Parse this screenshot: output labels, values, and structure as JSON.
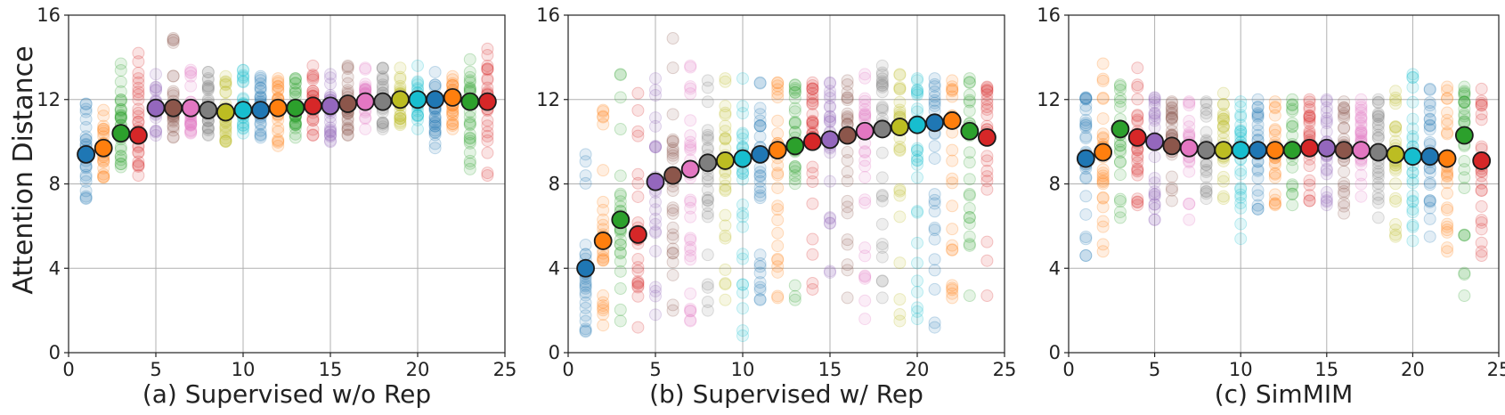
{
  "figure": {
    "ylabel": "Attention Distance"
  },
  "chart_data": [
    {
      "type": "scatter",
      "title": "",
      "xlabel": "(a) Supervised w/o Rep",
      "ylabel": "Attention Distance",
      "xlim": [
        0,
        25
      ],
      "ylim": [
        0,
        16
      ],
      "xticks": [
        0,
        5,
        10,
        15,
        20,
        25
      ],
      "yticks": [
        0,
        4,
        8,
        12,
        16
      ],
      "grid": true,
      "layers": [
        1,
        2,
        3,
        4,
        5,
        6,
        7,
        8,
        9,
        10,
        11,
        12,
        13,
        14,
        15,
        16,
        17,
        18,
        19,
        20,
        21,
        22,
        23,
        24
      ],
      "mean_distance": [
        9.4,
        9.7,
        10.4,
        10.3,
        11.6,
        11.6,
        11.6,
        11.5,
        11.4,
        11.5,
        11.5,
        11.6,
        11.6,
        11.7,
        11.7,
        11.8,
        11.9,
        11.9,
        12.0,
        12.0,
        12.0,
        12.1,
        11.9,
        11.9
      ],
      "head_range_min": [
        7.3,
        8.3,
        8.8,
        8.4,
        10.3,
        10.2,
        10.4,
        10.3,
        10.0,
        10.4,
        10.2,
        9.8,
        10.2,
        10.3,
        10.0,
        10.3,
        10.6,
        10.6,
        10.8,
        10.6,
        9.7,
        10.6,
        8.7,
        8.4
      ],
      "head_range_max": [
        11.8,
        11.5,
        13.7,
        14.2,
        13.2,
        14.9,
        13.4,
        13.3,
        13.1,
        13.4,
        13.1,
        13.0,
        13.0,
        13.6,
        13.2,
        13.6,
        13.5,
        13.5,
        13.5,
        13.6,
        13.3,
        13.1,
        13.9,
        14.4
      ]
    },
    {
      "type": "scatter",
      "title": "",
      "xlabel": "(b) Supervised w/ Rep",
      "ylabel": "",
      "xlim": [
        0,
        25
      ],
      "ylim": [
        0,
        16
      ],
      "xticks": [
        0,
        5,
        10,
        15,
        20,
        25
      ],
      "yticks": [
        0,
        4,
        8,
        12,
        16
      ],
      "grid": true,
      "layers": [
        1,
        2,
        3,
        4,
        5,
        6,
        7,
        8,
        9,
        10,
        11,
        12,
        13,
        14,
        15,
        16,
        17,
        18,
        19,
        20,
        21,
        22,
        23,
        24
      ],
      "mean_distance": [
        4.0,
        5.3,
        6.3,
        5.6,
        8.1,
        8.4,
        8.7,
        9.0,
        9.1,
        9.2,
        9.4,
        9.6,
        9.8,
        10.0,
        10.1,
        10.3,
        10.5,
        10.6,
        10.7,
        10.8,
        10.9,
        11.0,
        10.5,
        10.2
      ],
      "head_range_min": [
        1.0,
        1.3,
        1.5,
        1.2,
        1.8,
        2.0,
        1.5,
        2.0,
        2.5,
        0.8,
        2.5,
        2.6,
        2.5,
        3.0,
        3.8,
        2.6,
        1.6,
        2.6,
        1.5,
        1.6,
        1.2,
        2.6,
        2.7,
        2.7
      ],
      "head_range_max": [
        9.4,
        11.5,
        13.2,
        12.3,
        13.0,
        14.9,
        13.6,
        12.9,
        13.0,
        13.0,
        12.8,
        12.8,
        12.7,
        12.8,
        12.8,
        12.9,
        13.2,
        13.6,
        13.2,
        13.0,
        13.0,
        12.9,
        13.0,
        12.6
      ]
    },
    {
      "type": "scatter",
      "title": "",
      "xlabel": "(c) SimMIM",
      "ylabel": "",
      "xlim": [
        0,
        25
      ],
      "ylim": [
        0,
        16
      ],
      "xticks": [
        0,
        5,
        10,
        15,
        20,
        25
      ],
      "yticks": [
        0,
        4,
        8,
        12,
        16
      ],
      "grid": true,
      "layers": [
        1,
        2,
        3,
        4,
        5,
        6,
        7,
        8,
        9,
        10,
        11,
        12,
        13,
        14,
        15,
        16,
        17,
        18,
        19,
        20,
        21,
        22,
        23,
        24
      ],
      "mean_distance": [
        9.2,
        9.5,
        10.6,
        10.2,
        10.0,
        9.8,
        9.7,
        9.6,
        9.6,
        9.6,
        9.6,
        9.6,
        9.6,
        9.7,
        9.7,
        9.6,
        9.6,
        9.5,
        9.4,
        9.3,
        9.3,
        9.2,
        10.3,
        9.1
      ],
      "head_range_min": [
        4.6,
        4.8,
        6.4,
        7.0,
        6.3,
        7.2,
        6.3,
        7.3,
        7.3,
        5.4,
        6.8,
        7.0,
        7.0,
        7.2,
        7.0,
        6.6,
        7.4,
        6.4,
        5.5,
        5.3,
        5.5,
        4.8,
        2.7,
        4.6
      ],
      "head_range_max": [
        12.1,
        13.7,
        12.7,
        13.5,
        12.1,
        11.9,
        11.9,
        11.9,
        12.3,
        11.9,
        12.0,
        11.9,
        12.0,
        12.0,
        12.0,
        11.9,
        12.0,
        12.0,
        12.4,
        13.2,
        12.5,
        12.6,
        12.6,
        12.5
      ]
    }
  ],
  "palette": [
    "#1f77b4",
    "#ff7f0e",
    "#2ca02c",
    "#d62728",
    "#9467bd",
    "#8c564b",
    "#e377c2",
    "#7f7f7f",
    "#bcbd22",
    "#17becf"
  ]
}
